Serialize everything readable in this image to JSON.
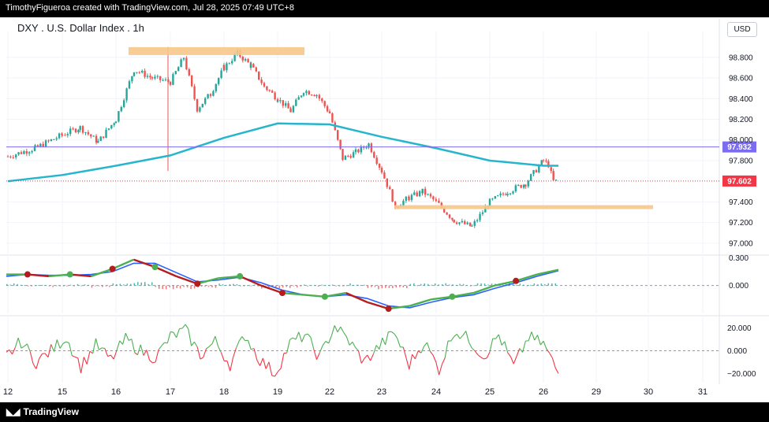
{
  "header": {
    "credit": "TimothyFigueroa created with TradingView.com, Jul 28, 2025 07:49 UTC+8",
    "title": "DXY . U.S. Dollar Index . 1h",
    "currency": "USD",
    "brand": "TradingView"
  },
  "colors": {
    "up": "#26a69a",
    "down": "#ef5350",
    "ma": "#26b5cc",
    "resistance": "#f7c78a",
    "hline": "#7b6cf0",
    "last": "#f23645",
    "macd": "#2962ff",
    "signal_up": "#4caf50",
    "signal_down": "#b71c1c"
  },
  "chart_data": [
    {
      "type": "candlestick",
      "title": "DXY . U.S. Dollar Index . 1h",
      "ylim": [
        96.9,
        99.05
      ],
      "y_ticks": [
        "98.800",
        "98.600",
        "98.400",
        "98.200",
        "98.000",
        "97.800",
        "97.400",
        "97.200",
        "97.000"
      ],
      "x_ticks": [
        "12",
        "15",
        "16",
        "17",
        "18",
        "19",
        "22",
        "23",
        "24",
        "25",
        "26",
        "29",
        "30",
        "31"
      ],
      "price_tags": [
        {
          "label": "97.932",
          "value": 97.932,
          "color": "#7b6cf0"
        },
        {
          "label": "97.602",
          "value": 97.602,
          "color": "#f23645"
        }
      ],
      "zones": [
        {
          "from": "16",
          "to": "19",
          "value": 98.86,
          "note": "resistance"
        },
        {
          "from": "23",
          "to": "26",
          "value": 97.33,
          "note": "support"
        }
      ],
      "close_path": [
        [
          "12",
          97.84
        ],
        [
          "12",
          97.92
        ],
        [
          "15",
          98.05
        ],
        [
          "15",
          98.12
        ],
        [
          "15",
          97.98
        ],
        [
          "16",
          98.2
        ],
        [
          "16",
          98.68
        ],
        [
          "16",
          98.6
        ],
        [
          "17",
          98.56
        ],
        [
          "17",
          98.8
        ],
        [
          "17",
          98.3
        ],
        [
          "17",
          98.45
        ],
        [
          "18",
          98.7
        ],
        [
          "18",
          98.84
        ],
        [
          "18",
          98.72
        ],
        [
          "18",
          98.52
        ],
        [
          "19",
          98.4
        ],
        [
          "19",
          98.28
        ],
        [
          "19",
          98.48
        ],
        [
          "19",
          98.44
        ],
        [
          "22",
          98.26
        ],
        [
          "22",
          97.82
        ],
        [
          "22",
          97.88
        ],
        [
          "22",
          97.96
        ],
        [
          "23",
          97.7
        ],
        [
          "23",
          97.36
        ],
        [
          "23",
          97.44
        ],
        [
          "23",
          97.5
        ],
        [
          "24",
          97.4
        ],
        [
          "24",
          97.22
        ],
        [
          "24",
          97.16
        ],
        [
          "25",
          97.4
        ],
        [
          "25",
          97.5
        ],
        [
          "25",
          97.58
        ],
        [
          "26",
          97.8
        ],
        [
          "26",
          97.76
        ],
        [
          "26",
          97.6
        ]
      ],
      "moving_average": [
        [
          "12",
          97.6
        ],
        [
          "15",
          97.66
        ],
        [
          "16",
          97.75
        ],
        [
          "17",
          97.85
        ],
        [
          "18",
          98.02
        ],
        [
          "19",
          98.16
        ],
        [
          "22",
          98.15
        ],
        [
          "23",
          98.03
        ],
        [
          "24",
          97.92
        ],
        [
          "25",
          97.8
        ],
        [
          "26",
          97.75
        ]
      ]
    },
    {
      "type": "line",
      "y_ticks": [
        "0.300",
        "0.000"
      ],
      "ylim": [
        -0.3,
        0.32
      ],
      "series": [
        {
          "values": [
            0.12,
            0.12,
            0.1,
            0.12,
            0.1,
            0.18,
            0.28,
            0.2,
            0.1,
            0.02,
            0.08,
            0.1,
            0.0,
            -0.08,
            -0.1,
            -0.12,
            -0.08,
            -0.18,
            -0.25,
            -0.22,
            -0.15,
            -0.12,
            -0.08,
            0.0,
            0.05,
            0.12,
            0.17
          ]
        },
        {
          "values": [
            0.1,
            0.12,
            0.11,
            0.11,
            0.12,
            0.15,
            0.24,
            0.24,
            0.14,
            0.04,
            0.06,
            0.09,
            0.03,
            -0.05,
            -0.1,
            -0.12,
            -0.1,
            -0.14,
            -0.22,
            -0.24,
            -0.18,
            -0.13,
            -0.1,
            -0.03,
            0.03,
            0.1,
            0.16
          ]
        }
      ]
    },
    {
      "type": "line",
      "y_ticks": [
        "20.000",
        "0.000",
        "−20.000"
      ],
      "ylim": [
        -28,
        30
      ],
      "series": [
        {
          "values": [
            -5,
            8,
            -10,
            0,
            12,
            -14,
            5,
            -8,
            10,
            0,
            -6,
            12,
            18,
            -4,
            8,
            -12,
            14,
            -8,
            -20,
            6,
            14,
            -6,
            22,
            8,
            -10,
            4,
            16,
            -12,
            8,
            -16,
            18,
            10,
            -5,
            14,
            -14,
            12,
            6,
            -20
          ]
        }
      ]
    }
  ]
}
